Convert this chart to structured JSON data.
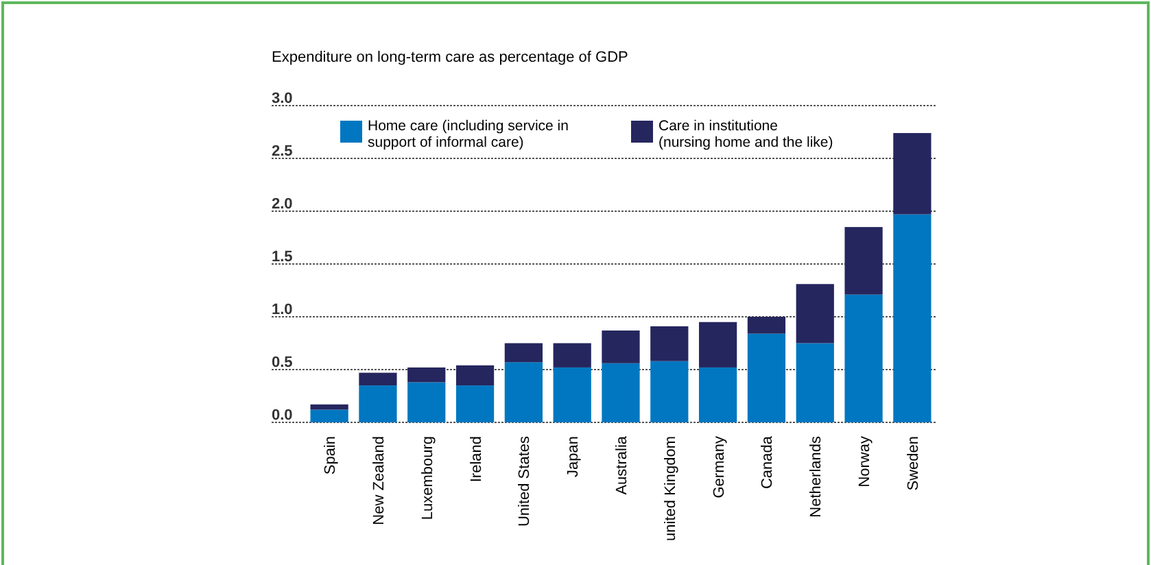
{
  "chart_data": {
    "type": "bar",
    "title": "Expenditure on long-term care as percentage of GDP",
    "categories": [
      "Spain",
      "New Zealand",
      "Luxembourg",
      "Ireland",
      "United States",
      "Japan",
      "Australia",
      "united Kingdom",
      "Germany",
      "Canada",
      "Netherlands",
      "Norway",
      "Sweden"
    ],
    "series": [
      {
        "name": "Home care (including service in support of informal care)",
        "color": "#0077c0",
        "values": [
          0.12,
          0.35,
          0.38,
          0.35,
          0.57,
          0.52,
          0.56,
          0.58,
          0.52,
          0.84,
          0.75,
          1.21,
          1.97
        ]
      },
      {
        "name": "Care in institutione (nursing home and the like)",
        "color": "#25265e",
        "values": [
          0.05,
          0.12,
          0.14,
          0.19,
          0.18,
          0.23,
          0.31,
          0.33,
          0.43,
          0.16,
          0.56,
          0.64,
          0.77
        ]
      }
    ],
    "stacked": true,
    "ylim": [
      0,
      3
    ],
    "yticks": [
      {
        "value": 0,
        "label": "0.0"
      },
      {
        "value": 0.5,
        "label": "0.5"
      },
      {
        "value": 1,
        "label": "1.0"
      },
      {
        "value": 1.5,
        "label": "1.5"
      },
      {
        "value": 2,
        "label": "2.0"
      },
      {
        "value": 2.5,
        "label": "2.5"
      },
      {
        "value": 3,
        "label": "3.0"
      }
    ],
    "grid": "y",
    "legend": "top"
  }
}
